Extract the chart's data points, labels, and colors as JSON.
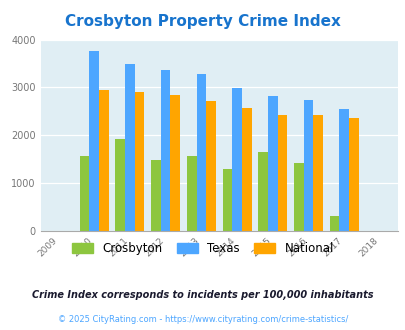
{
  "title": "Crosbyton Property Crime Index",
  "title_color": "#1874CD",
  "years": [
    2009,
    2010,
    2011,
    2012,
    2013,
    2014,
    2015,
    2016,
    2017,
    2018
  ],
  "bar_years": [
    2010,
    2011,
    2012,
    2013,
    2014,
    2015,
    2016,
    2017
  ],
  "crosbyton": [
    1560,
    1930,
    1480,
    1560,
    1300,
    1660,
    1420,
    310
  ],
  "texas": [
    3770,
    3480,
    3360,
    3280,
    2990,
    2820,
    2740,
    2560
  ],
  "national": [
    2940,
    2910,
    2840,
    2710,
    2580,
    2430,
    2430,
    2360
  ],
  "crosbyton_color": "#8DC63F",
  "texas_color": "#4DA6FF",
  "national_color": "#FFA500",
  "bg_color": "#E0EEF4",
  "ylim": [
    0,
    4000
  ],
  "yticks": [
    0,
    1000,
    2000,
    3000,
    4000
  ],
  "subtitle": "Crime Index corresponds to incidents per 100,000 inhabitants",
  "subtitle_color": "#1a1a2e",
  "footer": "© 2025 CityRating.com - https://www.cityrating.com/crime-statistics/",
  "footer_color": "#4DA6FF",
  "legend_labels": [
    "Crosbyton",
    "Texas",
    "National"
  ]
}
